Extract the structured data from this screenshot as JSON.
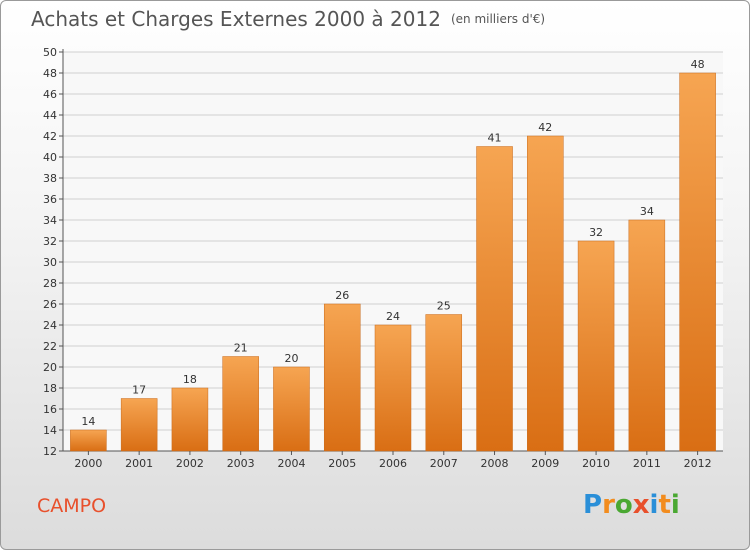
{
  "title": "Achats et Charges Externes 2000 à 2012",
  "subtitle": "(en milliers d'€)",
  "city": "CAMPO",
  "logo": [
    "P",
    "r",
    "o",
    "x",
    "i",
    "t",
    "i"
  ],
  "logo_colors": [
    "#2a8fd8",
    "#f28c1e",
    "#4aa832",
    "#e8502c",
    "#2a8fd8",
    "#f28c1e",
    "#4aa832"
  ],
  "colors": {
    "bar_light": "#f6a552",
    "bar_dark": "#d96e14",
    "grid": "#cfcfcf",
    "title": "#555555",
    "city": "#e8502c"
  },
  "chart_data": {
    "type": "bar",
    "categories": [
      "2000",
      "2001",
      "2002",
      "2003",
      "2004",
      "2005",
      "2006",
      "2007",
      "2008",
      "2009",
      "2010",
      "2011",
      "2012"
    ],
    "values": [
      14,
      17,
      18,
      21,
      20,
      26,
      24,
      25,
      41,
      42,
      32,
      34,
      48
    ],
    "ylim": [
      12,
      50
    ],
    "ytick_step": 2,
    "grid": true
  }
}
